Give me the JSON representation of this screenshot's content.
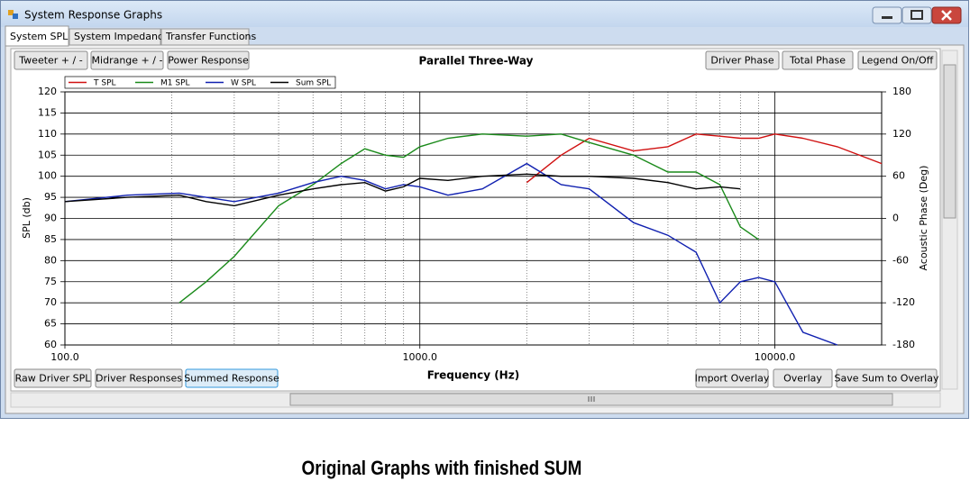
{
  "window": {
    "title": "System Response Graphs",
    "tabs": [
      "System SPL",
      "System Impedance",
      "Transfer Functions"
    ],
    "top_buttons": [
      "Tweeter + / -",
      "Midrange + / -",
      "Power Response",
      "Driver Phase",
      "Total Phase",
      "Legend On/Off"
    ],
    "bottom_buttons": [
      "Raw Driver SPL",
      "Driver Responses",
      "Summed Response",
      "Import Overlay",
      "Overlay",
      "Save Sum to Overlay"
    ]
  },
  "chart_data": {
    "type": "line",
    "title": "Parallel Three-Way",
    "xlabel": "Frequency (Hz)",
    "ylabel": "SPL (db)",
    "y2label": "Acoustic Phase (Deg)",
    "xscale": "log",
    "x": [
      100,
      150,
      210,
      250,
      300,
      400,
      500,
      600,
      700,
      800,
      900,
      1000,
      1200,
      1500,
      2000,
      2500,
      3000,
      4000,
      5000,
      6000,
      7000,
      8000,
      9000,
      10000,
      12000,
      15000,
      20000
    ],
    "xlim": [
      100,
      20000
    ],
    "xticks": [
      {
        "value": 100,
        "label": "100.0"
      },
      {
        "value": 1000,
        "label": "1000.0"
      },
      {
        "value": 10000,
        "label": "10000.0"
      }
    ],
    "ylim": [
      60,
      120
    ],
    "yticks": [
      60,
      65,
      70,
      75,
      80,
      85,
      90,
      95,
      100,
      105,
      110,
      115,
      120
    ],
    "y2lim": [
      -180,
      180
    ],
    "y2ticks": [
      -180,
      -120,
      -60,
      0,
      60,
      120,
      180
    ],
    "grid": true,
    "legend": "top-left",
    "series": [
      {
        "name": "T SPL",
        "color": "#d01010",
        "values": [
          null,
          null,
          null,
          null,
          null,
          null,
          null,
          null,
          null,
          null,
          null,
          null,
          null,
          null,
          98.5,
          105,
          109,
          106,
          107,
          110,
          109.5,
          109,
          109,
          110,
          109,
          107,
          103
        ]
      },
      {
        "name": "M1 SPL",
        "color": "#1a8a1a",
        "values": [
          null,
          null,
          70,
          75,
          81,
          93,
          98,
          103,
          106.5,
          105,
          104.5,
          107,
          109,
          110,
          109.5,
          110,
          108,
          105,
          101,
          101,
          98,
          88,
          85,
          null,
          null,
          null,
          null
        ]
      },
      {
        "name": "W SPL",
        "color": "#1020b0",
        "values": [
          94,
          95.5,
          96,
          95,
          94,
          96,
          98.5,
          100,
          99,
          97,
          98,
          97.5,
          95.5,
          97,
          103,
          98,
          97,
          89,
          86,
          82,
          70,
          75,
          76,
          75,
          63,
          60,
          null
        ]
      },
      {
        "name": "Sum SPL",
        "color": "#000000",
        "values": [
          94,
          95,
          95.5,
          94,
          93,
          95.5,
          97,
          98,
          98.5,
          96.5,
          97.5,
          99.5,
          99,
          100,
          100.5,
          100,
          100,
          99.5,
          98.5,
          97,
          97.5,
          97,
          null,
          null,
          null,
          null,
          null
        ]
      }
    ]
  },
  "caption": "Original Graphs with finished SUM"
}
